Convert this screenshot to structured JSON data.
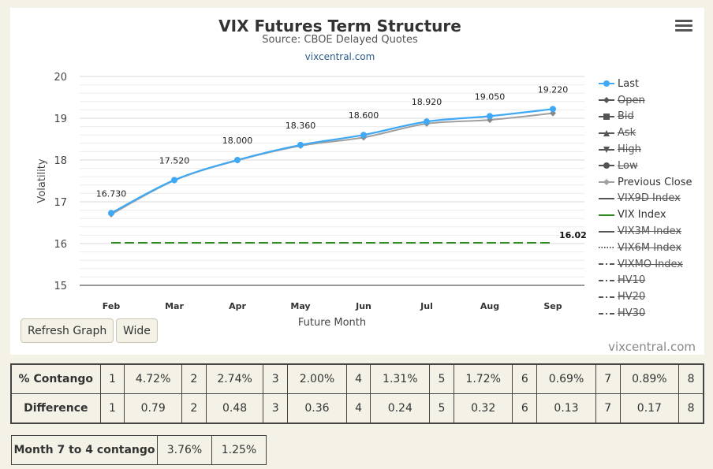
{
  "chart": {
    "title": "VIX Futures Term Structure",
    "subtitle": "Source: CBOE Delayed Quotes",
    "source_link": "vixcentral.com",
    "credit": "vixcentral.com",
    "buttons": {
      "refresh": "Refresh Graph",
      "wide": "Wide"
    }
  },
  "chart_data": {
    "type": "line",
    "title": "VIX Futures Term Structure",
    "subtitle": "Source: CBOE Delayed Quotes",
    "xlabel": "Future Month",
    "ylabel": "Volatility",
    "categories": [
      "Feb",
      "Mar",
      "Apr",
      "May",
      "Jun",
      "Jul",
      "Aug",
      "Sep"
    ],
    "ylim": [
      15,
      20
    ],
    "yticks": [
      "15",
      "16",
      "17",
      "18",
      "19",
      "20"
    ],
    "grid": true,
    "legend_position": "right",
    "series": [
      {
        "name": "Last",
        "values": [
          16.73,
          17.52,
          18.0,
          18.36,
          18.6,
          18.92,
          19.05,
          19.22
        ],
        "labels": [
          "16.730",
          "17.520",
          "18.000",
          "18.360",
          "18.600",
          "18.920",
          "19.050",
          "19.220"
        ],
        "color": "#3fa9f5"
      },
      {
        "name": "Previous Close",
        "values": [
          16.7,
          17.51,
          17.99,
          18.34,
          18.54,
          18.87,
          18.96,
          19.12
        ],
        "color": "#a0a0a0"
      },
      {
        "name": "VIX Index",
        "values": [
          16.02,
          16.02,
          16.02,
          16.02,
          16.02,
          16.02,
          16.02,
          16.02
        ],
        "end_label": "16.02",
        "color": "#2e8b1e",
        "dash": true
      }
    ]
  },
  "legend": [
    {
      "label": "Last",
      "marker": "circle",
      "line": "solid",
      "color": "#3fa9f5",
      "active": true
    },
    {
      "label": "Open",
      "marker": "diamond",
      "line": "solid",
      "color": "#555555",
      "active": false
    },
    {
      "label": "Bid",
      "marker": "square",
      "line": "solid",
      "color": "#555555",
      "active": false
    },
    {
      "label": "Ask",
      "marker": "triangle",
      "line": "solid",
      "color": "#555555",
      "active": false
    },
    {
      "label": "High",
      "marker": "triangle-down",
      "line": "solid",
      "color": "#555555",
      "active": false
    },
    {
      "label": "Low",
      "marker": "circle",
      "line": "solid",
      "color": "#555555",
      "active": false
    },
    {
      "label": "Previous Close",
      "marker": "diamond",
      "line": "solid",
      "color": "#a0a0a0",
      "active": true
    },
    {
      "label": "VIX9D Index",
      "marker": "none",
      "line": "solid",
      "color": "#555555",
      "active": false
    },
    {
      "label": "VIX Index",
      "marker": "none",
      "line": "solid",
      "color": "#2e8b1e",
      "active": true
    },
    {
      "label": "VIX3M Index",
      "marker": "none",
      "line": "solid",
      "color": "#555555",
      "active": false
    },
    {
      "label": "VIX6M Index",
      "marker": "none",
      "line": "dotted",
      "color": "#555555",
      "active": false
    },
    {
      "label": "VIXMO Index",
      "marker": "none",
      "line": "dashdot",
      "color": "#555555",
      "active": false
    },
    {
      "label": "HV10",
      "marker": "none",
      "line": "dashdot",
      "color": "#555555",
      "active": false
    },
    {
      "label": "HV20",
      "marker": "none",
      "line": "dashdot",
      "color": "#555555",
      "active": false
    },
    {
      "label": "HV30",
      "marker": "none",
      "line": "dashdot",
      "color": "#555555",
      "active": false
    }
  ],
  "stats_table": {
    "contango": {
      "label": "% Contango",
      "cells": [
        "1",
        "4.72%",
        "2",
        "2.74%",
        "3",
        "2.00%",
        "4",
        "1.31%",
        "5",
        "1.72%",
        "6",
        "0.69%",
        "7",
        "0.89%",
        "8"
      ]
    },
    "difference": {
      "label": "Difference",
      "cells": [
        "1",
        "0.79",
        "2",
        "0.48",
        "3",
        "0.36",
        "4",
        "0.24",
        "5",
        "0.32",
        "6",
        "0.13",
        "7",
        "0.17",
        "8"
      ]
    }
  },
  "month_contango": {
    "label": "Month 7 to 4 contango",
    "value1": "3.76%",
    "value2": "1.25%"
  }
}
